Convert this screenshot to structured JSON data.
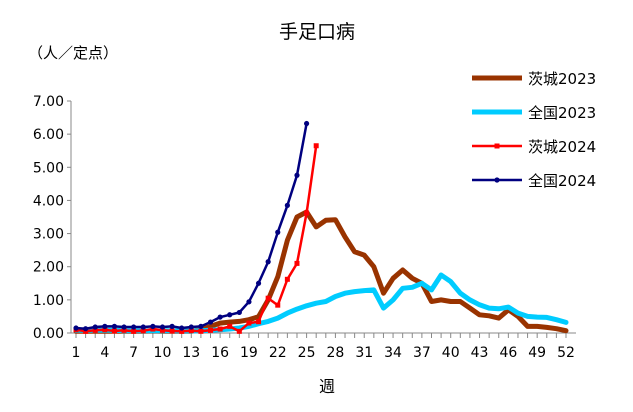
{
  "chart_data": {
    "type": "line",
    "title": "手足口病",
    "ylabel": "（人／定点）",
    "xlabel": "週",
    "ylim": [
      0,
      7
    ],
    "yticks": [
      "0.00",
      "1.00",
      "2.00",
      "3.00",
      "4.00",
      "5.00",
      "6.00",
      "7.00"
    ],
    "xticks": [
      1,
      4,
      7,
      10,
      13,
      16,
      19,
      22,
      25,
      28,
      31,
      34,
      37,
      40,
      43,
      46,
      49,
      52
    ],
    "xlim": [
      1,
      52
    ],
    "legend_position": "right",
    "series": [
      {
        "name": "茨城2023",
        "color": "#993300",
        "width": 5,
        "marker": "none",
        "values": [
          0.05,
          0.05,
          0.05,
          0.05,
          0.05,
          0.05,
          0.05,
          0.05,
          0.06,
          0.05,
          0.05,
          0.05,
          0.05,
          0.1,
          0.2,
          0.3,
          0.33,
          0.35,
          0.4,
          0.49,
          1.0,
          1.7,
          2.8,
          3.5,
          3.65,
          3.2,
          3.4,
          3.42,
          2.9,
          2.45,
          2.35,
          2.0,
          1.2,
          1.65,
          1.9,
          1.65,
          1.5,
          0.95,
          1.0,
          0.95,
          0.95,
          0.75,
          0.55,
          0.52,
          0.45,
          0.7,
          0.5,
          0.2,
          0.2,
          0.17,
          0.13,
          0.07
        ]
      },
      {
        "name": "全国2023",
        "color": "#00CCFF",
        "width": 5,
        "marker": "none",
        "values": [
          0.08,
          0.08,
          0.08,
          0.08,
          0.08,
          0.07,
          0.07,
          0.07,
          0.07,
          0.07,
          0.07,
          0.06,
          0.06,
          0.07,
          0.08,
          0.1,
          0.12,
          0.15,
          0.2,
          0.28,
          0.35,
          0.45,
          0.6,
          0.72,
          0.82,
          0.9,
          0.95,
          1.1,
          1.2,
          1.25,
          1.28,
          1.3,
          0.75,
          1.0,
          1.35,
          1.38,
          1.5,
          1.3,
          1.75,
          1.55,
          1.2,
          1.0,
          0.85,
          0.75,
          0.73,
          0.78,
          0.6,
          0.5,
          0.48,
          0.47,
          0.4,
          0.32
        ]
      },
      {
        "name": "茨城2024",
        "color": "#FF0000",
        "width": 2.5,
        "marker": "square",
        "values": [
          0.1,
          0.05,
          0.08,
          0.1,
          0.06,
          0.08,
          0.05,
          0.07,
          0.12,
          0.08,
          0.06,
          0.05,
          0.07,
          0.05,
          0.08,
          0.12,
          0.2,
          0.05,
          0.3,
          0.34,
          1.05,
          0.84,
          1.62,
          2.1,
          3.62,
          5.65
        ]
      },
      {
        "name": "全国2024",
        "color": "#000080",
        "width": 2.5,
        "marker": "circle",
        "values": [
          0.15,
          0.13,
          0.18,
          0.2,
          0.2,
          0.18,
          0.18,
          0.18,
          0.2,
          0.18,
          0.2,
          0.15,
          0.18,
          0.2,
          0.33,
          0.48,
          0.55,
          0.62,
          0.94,
          1.5,
          2.15,
          3.04,
          3.85,
          4.76,
          6.32
        ]
      }
    ]
  }
}
